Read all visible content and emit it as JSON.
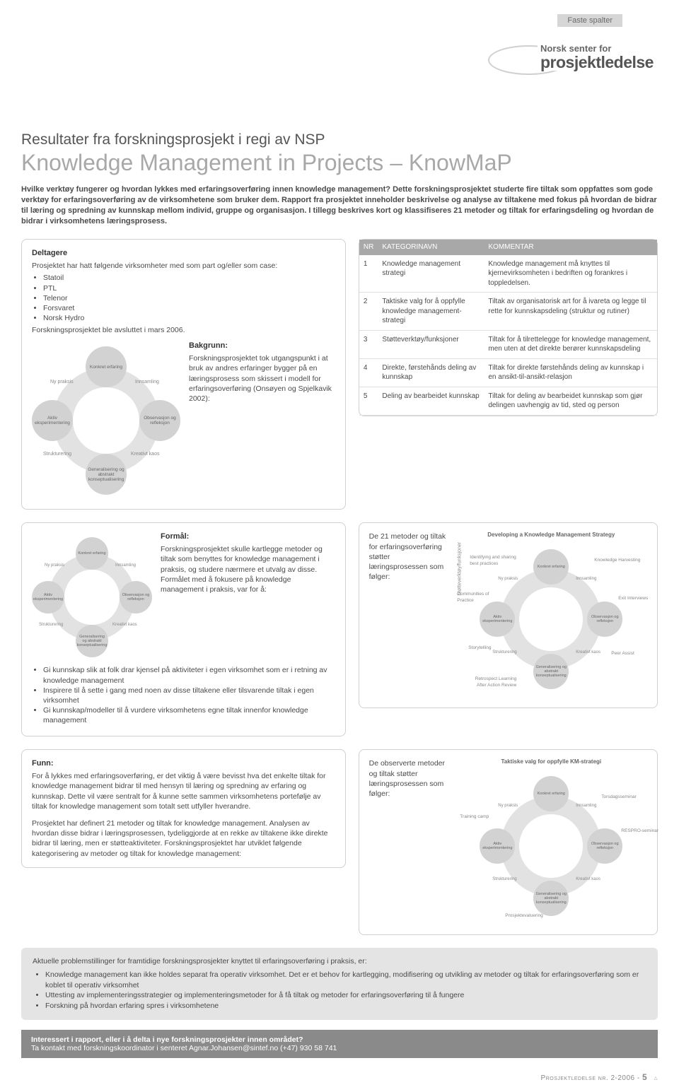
{
  "header": {
    "tag": "Faste spalter",
    "logo_small": "Norsk senter for",
    "logo_big": "prosjektledelse",
    "pretitle": "Resultater fra forskningsprosjekt i regi av NSP",
    "title": "Knowledge Management in Projects – KnowMaP"
  },
  "intro": "Hvilke verktøy fungerer og hvordan lykkes med erfaringsoverføring innen knowledge management? Dette forskningsprosjektet studerte fire tiltak som oppfattes som gode verktøy for erfaringsoverføring av de virksomhetene som bruker dem. Rapport fra prosjektet inneholder beskrivelse og analyse av tiltakene med fokus på hvordan de bidrar til læring og spredning av kunnskap mellom individ, gruppe og organisasjon. I tillegg beskrives kort og klassifiseres 21 metoder og tiltak for erfaringsdeling og hvordan de bidrar i virksomhetens læringsprosess.",
  "deltagere": {
    "heading": "Deltagere",
    "lead": "Prosjektet har hatt følgende virksomheter med som part og/eller som case:",
    "items": [
      "Statoil",
      "PTL",
      "Telenor",
      "Forsvaret",
      "Norsk Hydro"
    ],
    "closing": "Forskningsprosjektet ble avsluttet i mars 2006.",
    "bakgrunn_h": "Bakgrunn:",
    "bakgrunn": "Forskningsprosjektet tok utgangspunkt i at bruk av andres erfaringer bygger på en læringsprosess som skissert i modell for erfaringsoverføring (Onsøyen og Spjelkavik 2002):"
  },
  "cycle_nodes": [
    "Konkret erfaring",
    "Innsamling",
    "Observasjon og refleksjon",
    "Kreativt kaos",
    "Generalisering og abstrakt konseptualisering",
    "Strukturering",
    "Aktiv eksperimentering",
    "Ny praksis"
  ],
  "table": {
    "h1": "NR",
    "h2": "KATEGORINAVN",
    "h3": "KOMMENTAR",
    "rows": [
      {
        "nr": "1",
        "name": "Knowledge management strategi",
        "comment": "Knowledge management må knyttes til kjernevirksomheten i bedriften og forankres i toppledelsen."
      },
      {
        "nr": "2",
        "name": "Taktiske valg for å oppfylle knowledge management-strategi",
        "comment": "Tiltak av organisatorisk art for å ivareta og legge til rette for kunnskapsdeling (struktur og rutiner)"
      },
      {
        "nr": "3",
        "name": "Støtteverktøy/funksjoner",
        "comment": "Tiltak for å tilrettelegge for knowledge management, men uten at det direkte berører kunnskapsdeling"
      },
      {
        "nr": "4",
        "name": "Direkte, førstehånds deling av kunnskap",
        "comment": "Tiltak for direkte førstehånds deling av kunnskap i en ansikt-til-ansikt-relasjon"
      },
      {
        "nr": "5",
        "name": "Deling av bearbeidet kunnskap",
        "comment": "Tiltak for deling av bearbeidet kunnskap som gjør delingen uavhengig av tid, sted og person"
      }
    ]
  },
  "formal": {
    "heading": "Formål:",
    "lead": "Forskningsprosjektet skulle kartlegge metoder og tiltak som benyttes for knowledge management i praksis, og studere nærmere et utvalg av disse. Formålet med å fokusere på knowledge management i praksis, var for å:",
    "bullets": [
      "Gi kunnskap slik at folk drar kjensel på aktiviteter i egen virksomhet som er i retning av knowledge management",
      "Inspirere til å sette i gang med noen av disse tiltakene eller tilsvarende tiltak i egen virksomhet",
      "Gi kunnskap/modeller til å vurdere virksomhetens egne tiltak innenfor knowledge management"
    ]
  },
  "diagram2": {
    "title": "Developing a Knowledge Management Strategy",
    "lead": "De 21 metoder og tiltak for erfaringsoverføring støtter læringsprosessen som følger:",
    "side_label": "Støtteverktøy/funksjoner",
    "ext_labels": [
      "Knowledge Harvesting",
      "Exit Interviews",
      "Peer Assist",
      "Retrospect Learning After Action Review",
      "Storytelling",
      "Communities of Practice",
      "Identifying and sharing best practices"
    ]
  },
  "funn": {
    "heading": "Funn:",
    "p1": "For å lykkes med erfaringsoverføring, er det viktig å være bevisst hva det enkelte tiltak for knowledge management bidrar til med hensyn til læring og spredning av erfaring og kunnskap. Dette vil være sentralt for å kunne sette sammen virksomhetens portefølje av tiltak for knowledge management som totalt sett utfyller hverandre.",
    "p2": "Prosjektet har definert 21 metoder og tiltak for knowledge management. Analysen av hvordan disse bidrar i læringsprosessen, tydeliggjorde at en rekke av tiltakene ikke direkte bidrar til læring, men er støtteaktiviteter. Forskningsprosjektet har utviklet følgende kategorisering av metoder og tiltak for knowledge management:"
  },
  "diagram3": {
    "title": "Taktiske valg for oppfylle KM-strategi",
    "lead": "De observerte metoder og tiltak støtter læringsprosessen som følger:",
    "ext_labels": [
      "Torsdagsseminar",
      "RESPRO-seminar",
      "Prosjektevaluering",
      "Training camp"
    ]
  },
  "problems": {
    "lead": "Aktuelle problemstillinger for framtidige forskningsprosjekter knyttet til erfaringsoverføring i praksis, er:",
    "bullets": [
      "Knowledge management kan ikke holdes separat fra operativ virksomhet. Det er et behov for kartlegging, modifisering og utvikling av metoder og tiltak for erfaringsoverføring som er koblet til operativ virksomhet",
      "Uttesting av implementeringsstrategier og implementeringsmetoder for å få tiltak og metoder for erfaringsoverføring til å fungere",
      "Forskning på hvordan erfaring spres i virksomhetene"
    ]
  },
  "footer": {
    "line1": "Interessert i rapport, eller i å delta i nye forskningsprosjekter innen området?",
    "line2": "Ta kontakt med forskningskoordinator i senteret Agnar.Johansen@sintef.no (+47) 930 58 741"
  },
  "page_footer": {
    "text": "Prosjektledelse nr. 2-2006 -",
    "num": "5"
  }
}
